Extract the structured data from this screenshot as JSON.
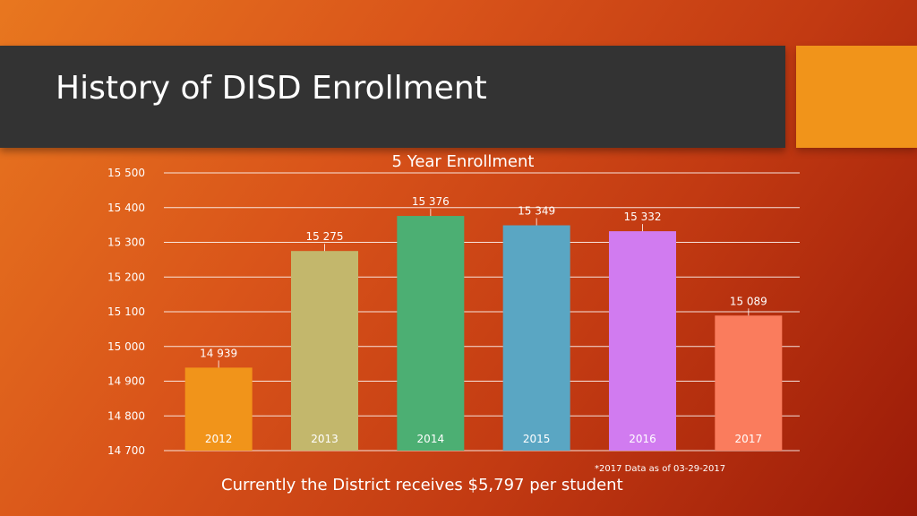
{
  "slide": {
    "title": "History of DISD Enrollment",
    "footnote": "*2017 Data as of 03-29-2017",
    "caption": "Currently the District receives $5,797 per student",
    "colors": {
      "title_bar": "#333333",
      "accent_square": "#f1941a"
    }
  },
  "chart_data": {
    "type": "bar",
    "title": "5 Year Enrollment",
    "categories": [
      "2012",
      "2013",
      "2014",
      "2015",
      "2016",
      "2017"
    ],
    "values": [
      14939,
      15275,
      15376,
      15349,
      15332,
      15089
    ],
    "data_labels": [
      "14 939",
      "15 275",
      "15 376",
      "15 349",
      "15 332",
      "15 089"
    ],
    "colors": [
      "#f1941a",
      "#c3b76c",
      "#4caf73",
      "#5aa6c3",
      "#d17bf0",
      "#fa7c5d"
    ],
    "ylim": [
      14700,
      15500
    ],
    "yticks": [
      14700,
      14800,
      14900,
      15000,
      15100,
      15200,
      15300,
      15400,
      15500
    ],
    "ytick_labels": [
      "14 700",
      "14 800",
      "14 900",
      "15 000",
      "15 100",
      "15 200",
      "15 300",
      "15 400",
      "15 500"
    ],
    "grid": true,
    "legend": "none"
  }
}
